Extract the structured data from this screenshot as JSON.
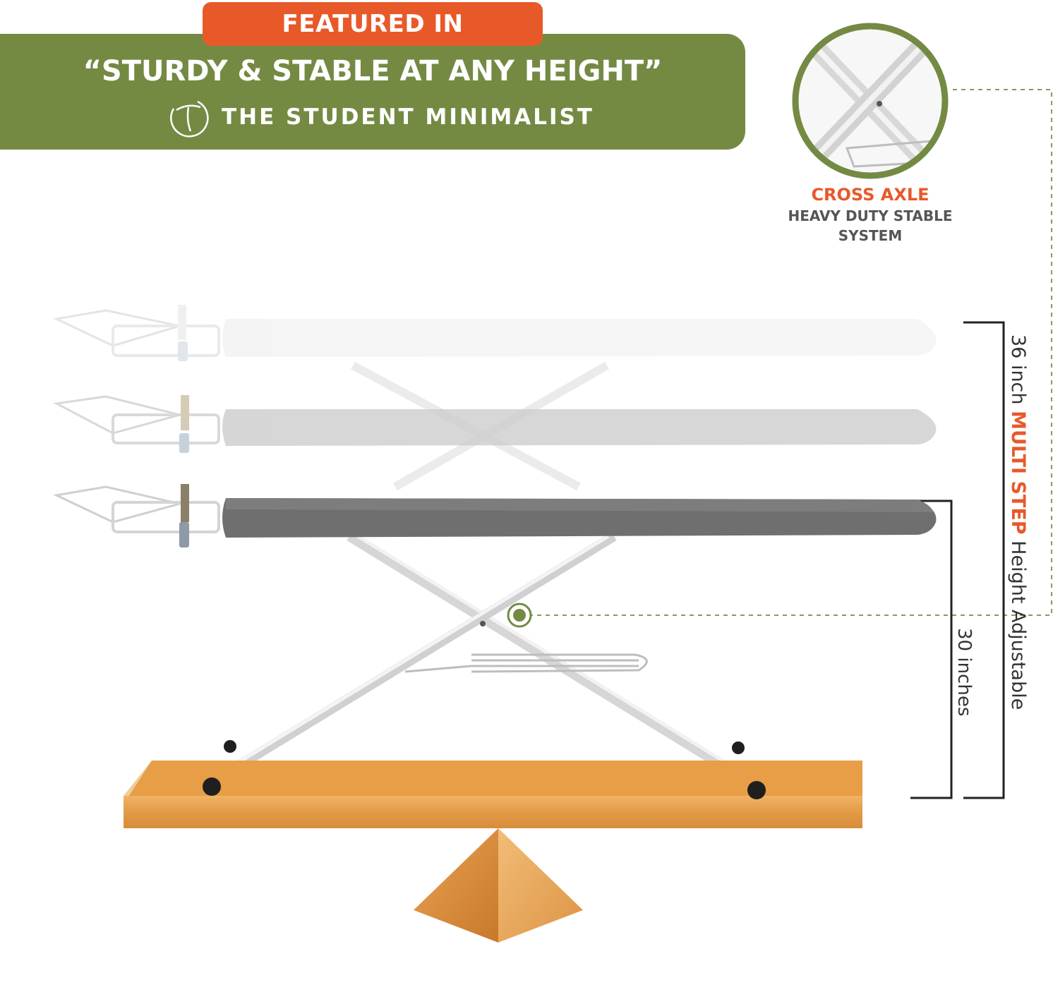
{
  "header": {
    "featured_label": "FEATURED IN",
    "quote": "“STURDY & STABLE AT ANY HEIGHT”",
    "source_name": "THE STUDENT MINIMALIST"
  },
  "callout": {
    "title": "CROSS AXLE",
    "subtitle_line1": "HEAVY DUTY STABLE",
    "subtitle_line2": "SYSTEM"
  },
  "dimensions": {
    "tall_prefix": "36 inch ",
    "tall_accent": "MULTI STEP",
    "tall_suffix": " Height Adjustable",
    "short_label": "30 inches"
  },
  "colors": {
    "brand_green": "#748a43",
    "accent_orange": "#e8592a",
    "wood": "#e9a353",
    "board_dark": "#6f6f6f"
  },
  "icons": [
    "student-minimalist-logo-icon",
    "cross-axle-detail-icon",
    "axle-marker-icon"
  ]
}
